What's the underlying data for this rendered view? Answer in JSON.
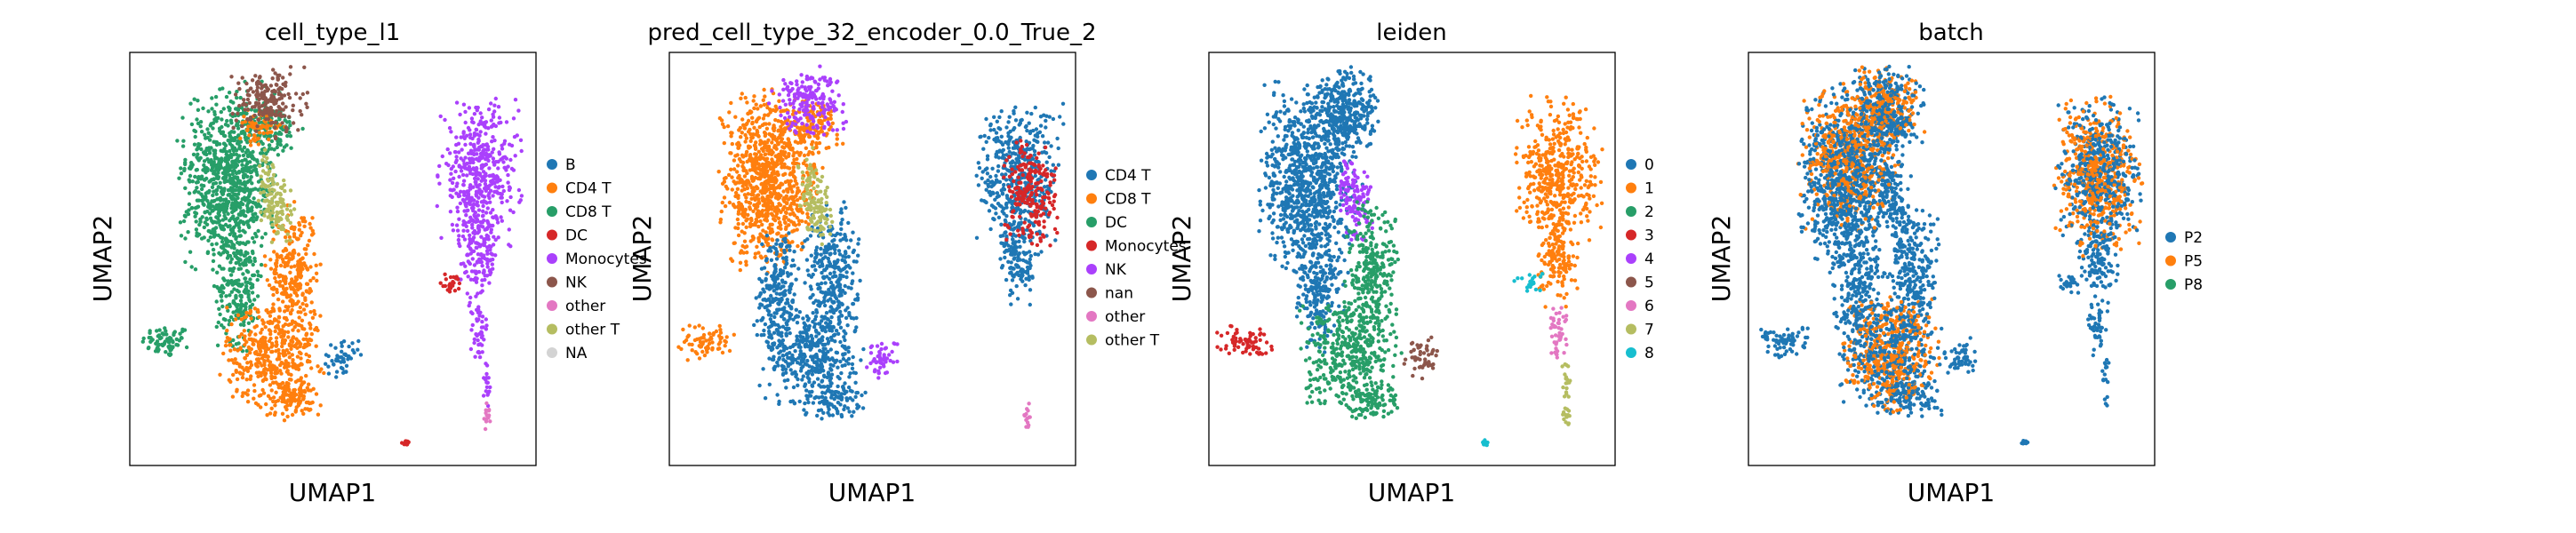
{
  "chart_data": [
    {
      "type": "scatter",
      "title": "cell_type_l1",
      "xlabel": "UMAP1",
      "ylabel": "UMAP2",
      "xticks": false,
      "yticks": false,
      "legend_position": "right",
      "legend": [
        {
          "label": "B",
          "color": "#1f77b4"
        },
        {
          "label": "CD4 T",
          "color": "#ff7f0e"
        },
        {
          "label": "CD8 T",
          "color": "#279e68"
        },
        {
          "label": "DC",
          "color": "#d62728"
        },
        {
          "label": "Monocytes",
          "color": "#aa40fc"
        },
        {
          "label": "NK",
          "color": "#8c564b"
        },
        {
          "label": "other",
          "color": "#e377c2"
        },
        {
          "label": "other T",
          "color": "#b5bd61"
        },
        {
          "label": "NA",
          "color": "#d3d3d3"
        }
      ],
      "clusters": [
        {
          "c": "#279e68",
          "b": [
            [
              0.09,
              0.3,
              0.055,
              0.035
            ]
          ]
        },
        {
          "c": "#279e68",
          "b": [
            [
              0.25,
              0.75,
              0.1,
              0.14
            ],
            [
              0.24,
              0.62,
              0.09,
              0.12
            ],
            [
              0.35,
              0.82,
              0.06,
              0.05
            ],
            [
              0.27,
              0.43,
              0.05,
              0.12
            ]
          ]
        },
        {
          "c": "#ff7f0e",
          "b": [
            [
              0.32,
              0.82,
              0.05,
              0.035
            ],
            [
              0.4,
              0.46,
              0.055,
              0.14
            ],
            [
              0.35,
              0.27,
              0.1,
              0.11
            ],
            [
              0.4,
              0.16,
              0.065,
              0.04
            ]
          ]
        },
        {
          "c": "#b5bd61",
          "b": [
            [
              0.34,
              0.68,
              0.02,
              0.07
            ],
            [
              0.37,
              0.62,
              0.03,
              0.07
            ]
          ]
        },
        {
          "c": "#8c564b",
          "b": [
            [
              0.34,
              0.88,
              0.075,
              0.07
            ]
          ]
        },
        {
          "c": "#1f77b4",
          "b": [
            [
              0.525,
              0.26,
              0.035,
              0.04
            ]
          ]
        },
        {
          "c": "#aa40fc",
          "b": [
            [
              0.86,
              0.7,
              0.085,
              0.15
            ],
            [
              0.86,
              0.5,
              0.04,
              0.09
            ],
            [
              0.86,
              0.33,
              0.02,
              0.06
            ],
            [
              0.88,
              0.2,
              0.01,
              0.05
            ]
          ]
        },
        {
          "c": "#d62728",
          "b": [
            [
              0.79,
              0.44,
              0.03,
              0.02
            ],
            [
              0.68,
              0.055,
              0.008,
              0.005
            ]
          ]
        },
        {
          "c": "#e377c2",
          "b": [
            [
              0.88,
              0.12,
              0.009,
              0.03
            ]
          ]
        }
      ]
    },
    {
      "type": "scatter",
      "title": "pred_cell_type_32_encoder_0.0_True_2",
      "xlabel": "UMAP1",
      "ylabel": "UMAP2",
      "xticks": false,
      "yticks": false,
      "legend_position": "right",
      "legend": [
        {
          "label": "CD4 T",
          "color": "#1f77b4"
        },
        {
          "label": "CD8 T",
          "color": "#ff7f0e"
        },
        {
          "label": "DC",
          "color": "#279e68"
        },
        {
          "label": "Monocytes",
          "color": "#d62728"
        },
        {
          "label": "NK",
          "color": "#aa40fc"
        },
        {
          "label": "nan",
          "color": "#8c564b"
        },
        {
          "label": "other",
          "color": "#e377c2"
        },
        {
          "label": "other T",
          "color": "#b5bd61"
        }
      ],
      "clusters": [
        {
          "c": "#ff7f0e",
          "b": [
            [
              0.09,
              0.3,
              0.055,
              0.035
            ]
          ]
        },
        {
          "c": "#ff7f0e",
          "b": [
            [
              0.25,
              0.75,
              0.1,
              0.14
            ],
            [
              0.24,
              0.62,
              0.09,
              0.12
            ],
            [
              0.35,
              0.82,
              0.06,
              0.05
            ]
          ]
        },
        {
          "c": "#1f77b4",
          "b": [
            [
              0.27,
              0.43,
              0.05,
              0.12
            ],
            [
              0.4,
              0.46,
              0.055,
              0.14
            ],
            [
              0.35,
              0.27,
              0.1,
              0.11
            ],
            [
              0.4,
              0.16,
              0.065,
              0.04
            ]
          ]
        },
        {
          "c": "#b5bd61",
          "b": [
            [
              0.34,
              0.68,
              0.02,
              0.07
            ],
            [
              0.37,
              0.62,
              0.03,
              0.07
            ]
          ]
        },
        {
          "c": "#aa40fc",
          "b": [
            [
              0.34,
              0.88,
              0.075,
              0.07
            ],
            [
              0.525,
              0.26,
              0.035,
              0.04
            ]
          ]
        },
        {
          "c": "#1f77b4",
          "b": [
            [
              0.86,
              0.7,
              0.085,
              0.15
            ],
            [
              0.86,
              0.5,
              0.04,
              0.09
            ]
          ]
        },
        {
          "c": "#d62728",
          "b": [
            [
              0.89,
              0.66,
              0.055,
              0.11
            ]
          ]
        },
        {
          "c": "#e377c2",
          "b": [
            [
              0.88,
              0.12,
              0.009,
              0.03
            ]
          ]
        }
      ]
    },
    {
      "type": "scatter",
      "title": "leiden",
      "xlabel": "UMAP1",
      "ylabel": "UMAP2",
      "xticks": false,
      "yticks": false,
      "legend_position": "right",
      "legend": [
        {
          "label": "0",
          "color": "#1f77b4"
        },
        {
          "label": "1",
          "color": "#ff7f0e"
        },
        {
          "label": "2",
          "color": "#279e68"
        },
        {
          "label": "3",
          "color": "#d62728"
        },
        {
          "label": "4",
          "color": "#aa40fc"
        },
        {
          "label": "5",
          "color": "#8c564b"
        },
        {
          "label": "6",
          "color": "#e377c2"
        },
        {
          "label": "7",
          "color": "#b5bd61"
        },
        {
          "label": "8",
          "color": "#17becf"
        }
      ],
      "clusters": [
        {
          "c": "#d62728",
          "b": [
            [
              0.09,
              0.3,
              0.055,
              0.035
            ]
          ]
        },
        {
          "c": "#1f77b4",
          "b": [
            [
              0.25,
              0.75,
              0.1,
              0.14
            ],
            [
              0.24,
              0.62,
              0.09,
              0.12
            ],
            [
              0.35,
              0.82,
              0.06,
              0.05
            ],
            [
              0.34,
              0.88,
              0.075,
              0.07
            ],
            [
              0.27,
              0.43,
              0.05,
              0.12
            ]
          ]
        },
        {
          "c": "#aa40fc",
          "b": [
            [
              0.34,
              0.68,
              0.02,
              0.07
            ],
            [
              0.37,
              0.62,
              0.03,
              0.07
            ]
          ]
        },
        {
          "c": "#279e68",
          "b": [
            [
              0.4,
              0.46,
              0.055,
              0.14
            ],
            [
              0.35,
              0.27,
              0.1,
              0.11
            ],
            [
              0.4,
              0.16,
              0.065,
              0.04
            ]
          ]
        },
        {
          "c": "#8c564b",
          "b": [
            [
              0.525,
              0.26,
              0.035,
              0.04
            ]
          ]
        },
        {
          "c": "#ff7f0e",
          "b": [
            [
              0.86,
              0.7,
              0.085,
              0.15
            ],
            [
              0.86,
              0.5,
              0.04,
              0.09
            ]
          ]
        },
        {
          "c": "#17becf",
          "b": [
            [
              0.79,
              0.44,
              0.03,
              0.02
            ],
            [
              0.68,
              0.055,
              0.008,
              0.005
            ]
          ]
        },
        {
          "c": "#e377c2",
          "b": [
            [
              0.86,
              0.33,
              0.02,
              0.06
            ]
          ]
        },
        {
          "c": "#b5bd61",
          "b": [
            [
              0.88,
              0.2,
              0.01,
              0.05
            ],
            [
              0.88,
              0.12,
              0.009,
              0.03
            ]
          ]
        }
      ]
    },
    {
      "type": "scatter",
      "title": "batch",
      "xlabel": "UMAP1",
      "ylabel": "UMAP2",
      "xticks": false,
      "yticks": false,
      "legend_position": "right",
      "legend": [
        {
          "label": "P2",
          "color": "#1f77b4"
        },
        {
          "label": "P5",
          "color": "#ff7f0e"
        },
        {
          "label": "P8",
          "color": "#279e68"
        }
      ],
      "mixed": true,
      "clusters": [
        {
          "c": "#1f77b4",
          "b": [
            [
              0.09,
              0.3,
              0.055,
              0.035
            ],
            [
              0.25,
              0.75,
              0.1,
              0.14
            ],
            [
              0.24,
              0.62,
              0.09,
              0.12
            ],
            [
              0.35,
              0.82,
              0.06,
              0.05
            ],
            [
              0.34,
              0.88,
              0.075,
              0.07
            ],
            [
              0.27,
              0.43,
              0.05,
              0.12
            ],
            [
              0.34,
              0.68,
              0.02,
              0.07
            ],
            [
              0.37,
              0.62,
              0.03,
              0.07
            ],
            [
              0.4,
              0.46,
              0.055,
              0.14
            ],
            [
              0.35,
              0.27,
              0.1,
              0.11
            ],
            [
              0.4,
              0.16,
              0.065,
              0.04
            ],
            [
              0.525,
              0.26,
              0.035,
              0.04
            ],
            [
              0.86,
              0.7,
              0.085,
              0.15
            ],
            [
              0.86,
              0.5,
              0.04,
              0.09
            ],
            [
              0.79,
              0.44,
              0.03,
              0.02
            ],
            [
              0.86,
              0.33,
              0.02,
              0.06
            ],
            [
              0.88,
              0.2,
              0.01,
              0.05
            ],
            [
              0.68,
              0.055,
              0.008,
              0.005
            ]
          ]
        },
        {
          "c": "#ff7f0e",
          "b": [
            [
              0.25,
              0.75,
              0.1,
              0.14
            ],
            [
              0.34,
              0.88,
              0.075,
              0.07
            ],
            [
              0.86,
              0.7,
              0.085,
              0.15
            ],
            [
              0.35,
              0.27,
              0.1,
              0.11
            ]
          ]
        }
      ]
    }
  ]
}
